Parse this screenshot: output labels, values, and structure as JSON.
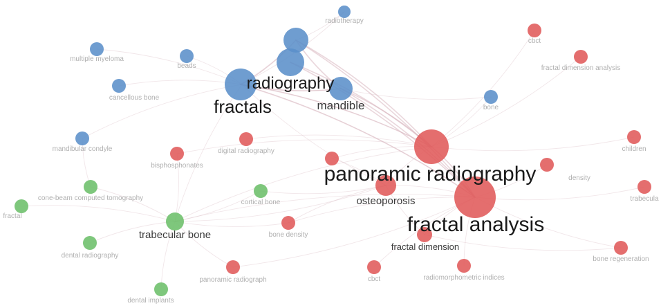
{
  "network": {
    "colors": {
      "blue": "#5b8fc9",
      "red": "#e05a5a",
      "green": "#6cbf6a",
      "edge": "#d8b7c0",
      "label_major": "#1a1a1a",
      "label_medium": "#3a3a3a",
      "label_minor": "#b0b0b0"
    },
    "nodes": [
      {
        "id": "radiotherapy",
        "label": "radiotherapy",
        "cluster": "blue"
      },
      {
        "id": "multiple-myeloma",
        "label": "multiple myeloma",
        "cluster": "blue"
      },
      {
        "id": "beads",
        "label": "beads",
        "cluster": "blue"
      },
      {
        "id": "radiography",
        "label": "radiography",
        "cluster": "blue"
      },
      {
        "id": "fractals",
        "label": "fractals",
        "cluster": "blue"
      },
      {
        "id": "mandible",
        "label": "mandible",
        "cluster": "blue"
      },
      {
        "id": "cancellous-bone",
        "label": "cancellous bone",
        "cluster": "blue"
      },
      {
        "id": "bone",
        "label": "bone",
        "cluster": "blue"
      },
      {
        "id": "mandibular-condyle",
        "label": "mandibular condyle",
        "cluster": "blue"
      },
      {
        "id": "hub-blue-top",
        "label": "",
        "cluster": "blue"
      },
      {
        "id": "hub-blue-mid",
        "label": "",
        "cluster": "blue"
      },
      {
        "id": "cbct-top",
        "label": "cbct",
        "cluster": "red"
      },
      {
        "id": "fractal-dimension-analysis",
        "label": "fractal dimension analysis",
        "cluster": "red"
      },
      {
        "id": "digital-radiography",
        "label": "digital radiography",
        "cluster": "red"
      },
      {
        "id": "bisphosphonates",
        "label": "bisphosphonates",
        "cluster": "red"
      },
      {
        "id": "panoramic-radiography",
        "label": "panoramic radiography",
        "cluster": "red"
      },
      {
        "id": "density",
        "label": "density",
        "cluster": "red"
      },
      {
        "id": "children",
        "label": "children",
        "cluster": "red"
      },
      {
        "id": "trabecula",
        "label": "trabecula",
        "cluster": "red"
      },
      {
        "id": "osteoporosis",
        "label": "osteoporosis",
        "cluster": "red"
      },
      {
        "id": "fractal-analysis",
        "label": "fractal analysis",
        "cluster": "red"
      },
      {
        "id": "bone-density",
        "label": "bone density",
        "cluster": "red"
      },
      {
        "id": "fractal-dimension",
        "label": "fractal dimension",
        "cluster": "red"
      },
      {
        "id": "bone-regeneration",
        "label": "bone regeneration",
        "cluster": "red"
      },
      {
        "id": "panoramic-radiograph",
        "label": "panoramic radiograph",
        "cluster": "red"
      },
      {
        "id": "cbct-bottom",
        "label": "cbct",
        "cluster": "red"
      },
      {
        "id": "radiomorphometric-indices",
        "label": "radiomorphometric indices",
        "cluster": "red"
      },
      {
        "id": "red-small-mid",
        "label": "",
        "cluster": "red"
      },
      {
        "id": "cone-beam-ct",
        "label": "cone-beam computed tomography",
        "cluster": "green"
      },
      {
        "id": "fractal",
        "label": "fractal",
        "cluster": "green"
      },
      {
        "id": "cortical-bone",
        "label": "cortical bone",
        "cluster": "green"
      },
      {
        "id": "trabecular-bone",
        "label": "trabecular bone",
        "cluster": "green"
      },
      {
        "id": "dental-radiography",
        "label": "dental radiography",
        "cluster": "green"
      },
      {
        "id": "dental-implants",
        "label": "dental implants",
        "cluster": "green"
      }
    ],
    "edges": [
      [
        "fractal-analysis",
        "panoramic-radiography"
      ],
      [
        "fractal-analysis",
        "fractals"
      ],
      [
        "fractal-analysis",
        "radiography"
      ],
      [
        "fractal-analysis",
        "mandible"
      ],
      [
        "fractal-analysis",
        "osteoporosis"
      ],
      [
        "fractal-analysis",
        "trabecular-bone"
      ],
      [
        "fractal-analysis",
        "fractal-dimension"
      ],
      [
        "fractal-analysis",
        "bone-regeneration"
      ],
      [
        "fractal-analysis",
        "hub-blue-top"
      ],
      [
        "fractal-analysis",
        "hub-blue-mid"
      ],
      [
        "fractal-analysis",
        "density"
      ],
      [
        "fractal-analysis",
        "radiomorphometric-indices"
      ],
      [
        "fractal-analysis",
        "cbct-bottom"
      ],
      [
        "fractal-analysis",
        "bone-density"
      ],
      [
        "panoramic-radiography",
        "fractals"
      ],
      [
        "panoramic-radiography",
        "radiography"
      ],
      [
        "panoramic-radiography",
        "mandible"
      ],
      [
        "panoramic-radiography",
        "hub-blue-top"
      ],
      [
        "panoramic-radiography",
        "hub-blue-mid"
      ],
      [
        "panoramic-radiography",
        "osteoporosis"
      ],
      [
        "panoramic-radiography",
        "trabecular-bone"
      ],
      [
        "panoramic-radiography",
        "digital-radiography"
      ],
      [
        "panoramic-radiography",
        "cbct-top"
      ],
      [
        "panoramic-radiography",
        "fractal-dimension-analysis"
      ],
      [
        "panoramic-radiography",
        "bone"
      ],
      [
        "panoramic-radiography",
        "children"
      ],
      [
        "panoramic-radiography",
        "bisphosphonates"
      ],
      [
        "fractals",
        "radiography"
      ],
      [
        "fractals",
        "mandible"
      ],
      [
        "fractals",
        "hub-blue-top"
      ],
      [
        "fractals",
        "beads"
      ],
      [
        "fractals",
        "multiple-myeloma"
      ],
      [
        "fractals",
        "cancellous-bone"
      ],
      [
        "fractals",
        "mandibular-condyle"
      ],
      [
        "fractals",
        "trabecular-bone"
      ],
      [
        "fractals",
        "osteoporosis"
      ],
      [
        "radiography",
        "hub-blue-top"
      ],
      [
        "radiography",
        "mandible"
      ],
      [
        "radiography",
        "radiotherapy"
      ],
      [
        "hub-blue-top",
        "mandible"
      ],
      [
        "hub-blue-top",
        "radiotherapy"
      ],
      [
        "mandible",
        "bone"
      ],
      [
        "trabecular-bone",
        "cortical-bone"
      ],
      [
        "trabecular-bone",
        "cone-beam-ct"
      ],
      [
        "trabecular-bone",
        "fractal"
      ],
      [
        "trabecular-bone",
        "dental-radiography"
      ],
      [
        "trabecular-bone",
        "dental-implants"
      ],
      [
        "trabecular-bone",
        "osteoporosis"
      ],
      [
        "trabecular-bone",
        "panoramic-radiograph"
      ],
      [
        "trabecular-bone",
        "bisphosphonates"
      ],
      [
        "trabecular-bone",
        "bone-density"
      ],
      [
        "osteoporosis",
        "bone-density"
      ],
      [
        "osteoporosis",
        "red-small-mid"
      ],
      [
        "osteoporosis",
        "fractal-dimension"
      ],
      [
        "fractal-dimension",
        "bone-regeneration"
      ],
      [
        "fractal-analysis",
        "trabecula"
      ],
      [
        "panoramic-radiography",
        "red-small-mid"
      ],
      [
        "mandibular-condyle",
        "cone-beam-ct"
      ],
      [
        "cortical-bone",
        "osteoporosis"
      ],
      [
        "panoramic-radiograph",
        "fractal-analysis"
      ]
    ]
  }
}
